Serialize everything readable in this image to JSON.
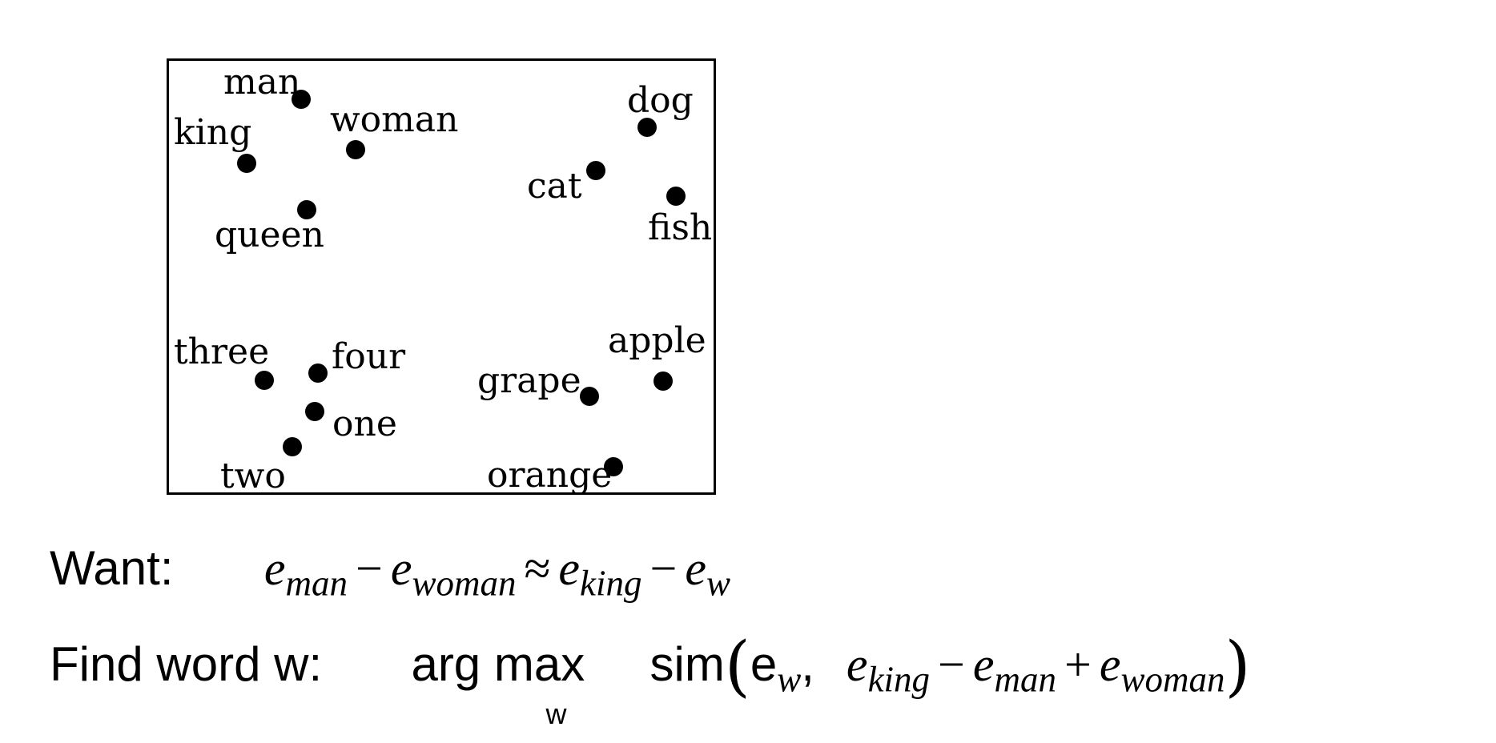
{
  "words": [
    {
      "label": "man"
    },
    {
      "label": "king"
    },
    {
      "label": "woman"
    },
    {
      "label": "queen"
    },
    {
      "label": "dog"
    },
    {
      "label": "cat"
    },
    {
      "label": "fish"
    },
    {
      "label": "three"
    },
    {
      "label": "four"
    },
    {
      "label": "one"
    },
    {
      "label": "two"
    },
    {
      "label": "apple"
    },
    {
      "label": "grape"
    },
    {
      "label": "orange"
    }
  ],
  "want_label": "Want:",
  "want_formula": {
    "e": "e",
    "sub_man": "man",
    "minus": "−",
    "sub_woman": "woman",
    "approx": "≈",
    "sub_king": "king",
    "sub_w": "w"
  },
  "find_label": "Find word w:",
  "find_formula": {
    "arg": "arg",
    "max": "max",
    "max_sub": "w",
    "sim": "sim",
    "open_paren": "(",
    "close_paren": ")",
    "e_upright": "e",
    "sub_w": "w",
    "comma": ",",
    "sub_king": "king",
    "sub_man": "man",
    "sub_woman": "woman",
    "minus": "−",
    "plus": "+"
  }
}
